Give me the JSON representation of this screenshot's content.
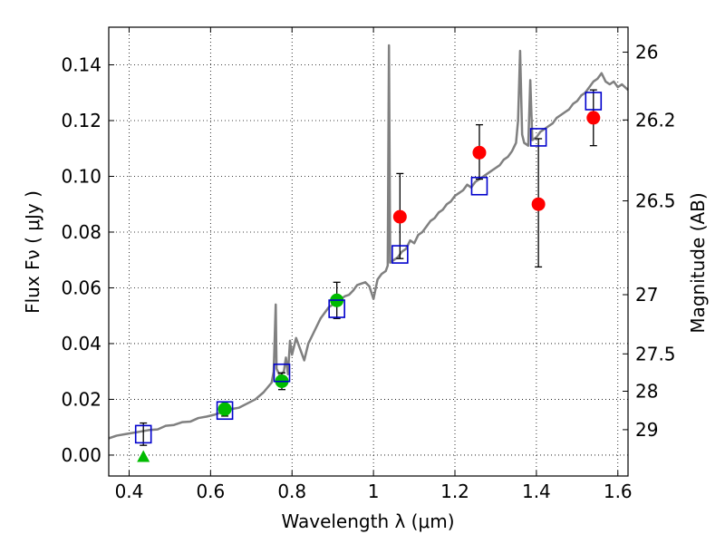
{
  "chart_data": {
    "type": "scatter",
    "xlabel": "Wavelength  λ (μm)",
    "ylabel": "Flux  Fν  ( μJy )",
    "y2label": "Magnitude (AB)",
    "xlim": [
      0.35,
      1.625
    ],
    "ylim": [
      -0.0075,
      0.1535
    ],
    "grid": true,
    "x_ticks": [
      {
        "value": 0.4,
        "label": "0.4"
      },
      {
        "value": 0.6,
        "label": "0.6"
      },
      {
        "value": 0.8,
        "label": "0.8"
      },
      {
        "value": 1.0,
        "label": "1"
      },
      {
        "value": 1.2,
        "label": "1.2"
      },
      {
        "value": 1.4,
        "label": "1.4"
      },
      {
        "value": 1.6,
        "label": "1.6"
      }
    ],
    "y_ticks": [
      {
        "value": 0.0,
        "label": "0.00"
      },
      {
        "value": 0.02,
        "label": "0.02"
      },
      {
        "value": 0.04,
        "label": "0.04"
      },
      {
        "value": 0.06,
        "label": "0.06"
      },
      {
        "value": 0.08,
        "label": "0.08"
      },
      {
        "value": 0.1,
        "label": "0.10"
      },
      {
        "value": 0.12,
        "label": "0.12"
      },
      {
        "value": 0.14,
        "label": "0.14"
      }
    ],
    "y2_ticks": [
      {
        "value": 26,
        "label": "26"
      },
      {
        "value": 26.2,
        "label": "26.2"
      },
      {
        "value": 26.5,
        "label": "26.5"
      },
      {
        "value": 27,
        "label": "27"
      },
      {
        "value": 27.5,
        "label": "27.5"
      },
      {
        "value": 28,
        "label": "28"
      },
      {
        "value": 29,
        "label": "29"
      }
    ],
    "colors": {
      "model": "#808080",
      "detection": "#ff0000",
      "secondary": "#00bb00",
      "model_flux": "#0000cc",
      "errorbar": "#000000"
    },
    "model_spectrum": {
      "name": "",
      "points": [
        [
          0.35,
          0.006
        ],
        [
          0.37,
          0.007
        ],
        [
          0.39,
          0.0075
        ],
        [
          0.41,
          0.008
        ],
        [
          0.43,
          0.0085
        ],
        [
          0.45,
          0.009
        ],
        [
          0.47,
          0.0092
        ],
        [
          0.49,
          0.0105
        ],
        [
          0.51,
          0.0108
        ],
        [
          0.53,
          0.0118
        ],
        [
          0.55,
          0.012
        ],
        [
          0.57,
          0.0133
        ],
        [
          0.59,
          0.0138
        ],
        [
          0.61,
          0.0145
        ],
        [
          0.63,
          0.0155
        ],
        [
          0.65,
          0.0165
        ],
        [
          0.67,
          0.017
        ],
        [
          0.69,
          0.0185
        ],
        [
          0.71,
          0.02
        ],
        [
          0.73,
          0.0225
        ],
        [
          0.75,
          0.026
        ],
        [
          0.755,
          0.03
        ],
        [
          0.76,
          0.054
        ],
        [
          0.762,
          0.031
        ],
        [
          0.77,
          0.0285
        ],
        [
          0.78,
          0.03
        ],
        [
          0.785,
          0.035
        ],
        [
          0.79,
          0.029
        ],
        [
          0.795,
          0.041
        ],
        [
          0.8,
          0.036
        ],
        [
          0.81,
          0.042
        ],
        [
          0.82,
          0.038
        ],
        [
          0.83,
          0.034
        ],
        [
          0.84,
          0.04
        ],
        [
          0.85,
          0.043
        ],
        [
          0.86,
          0.046
        ],
        [
          0.87,
          0.049
        ],
        [
          0.88,
          0.051
        ],
        [
          0.89,
          0.053
        ],
        [
          0.9,
          0.054
        ],
        [
          0.91,
          0.055
        ],
        [
          0.92,
          0.056
        ],
        [
          0.93,
          0.057
        ],
        [
          0.94,
          0.0575
        ],
        [
          0.95,
          0.059
        ],
        [
          0.96,
          0.061
        ],
        [
          0.97,
          0.0615
        ],
        [
          0.98,
          0.062
        ],
        [
          0.99,
          0.0605
        ],
        [
          1.0,
          0.056
        ],
        [
          1.01,
          0.063
        ],
        [
          1.02,
          0.065
        ],
        [
          1.03,
          0.066
        ],
        [
          1.035,
          0.068
        ],
        [
          1.038,
          0.147
        ],
        [
          1.041,
          0.069
        ],
        [
          1.05,
          0.07
        ],
        [
          1.06,
          0.071
        ],
        [
          1.07,
          0.073
        ],
        [
          1.08,
          0.074
        ],
        [
          1.09,
          0.077
        ],
        [
          1.1,
          0.076
        ],
        [
          1.11,
          0.079
        ],
        [
          1.12,
          0.08
        ],
        [
          1.13,
          0.082
        ],
        [
          1.14,
          0.084
        ],
        [
          1.15,
          0.085
        ],
        [
          1.16,
          0.087
        ],
        [
          1.17,
          0.088
        ],
        [
          1.18,
          0.09
        ],
        [
          1.19,
          0.091
        ],
        [
          1.2,
          0.093
        ],
        [
          1.21,
          0.094
        ],
        [
          1.22,
          0.095
        ],
        [
          1.23,
          0.097
        ],
        [
          1.24,
          0.096
        ],
        [
          1.25,
          0.098
        ],
        [
          1.26,
          0.099
        ],
        [
          1.27,
          0.1
        ],
        [
          1.28,
          0.101
        ],
        [
          1.29,
          0.102
        ],
        [
          1.3,
          0.103
        ],
        [
          1.31,
          0.104
        ],
        [
          1.32,
          0.106
        ],
        [
          1.33,
          0.107
        ],
        [
          1.34,
          0.109
        ],
        [
          1.35,
          0.112
        ],
        [
          1.355,
          0.12
        ],
        [
          1.36,
          0.145
        ],
        [
          1.365,
          0.115
        ],
        [
          1.37,
          0.112
        ],
        [
          1.38,
          0.111
        ],
        [
          1.385,
          0.1345
        ],
        [
          1.39,
          0.113
        ],
        [
          1.4,
          0.114
        ],
        [
          1.41,
          0.116
        ],
        [
          1.42,
          0.117
        ],
        [
          1.43,
          0.118
        ],
        [
          1.44,
          0.119
        ],
        [
          1.45,
          0.121
        ],
        [
          1.46,
          0.122
        ],
        [
          1.47,
          0.123
        ],
        [
          1.48,
          0.124
        ],
        [
          1.49,
          0.126
        ],
        [
          1.5,
          0.127
        ],
        [
          1.51,
          0.129
        ],
        [
          1.52,
          0.13
        ],
        [
          1.53,
          0.132
        ],
        [
          1.54,
          0.134
        ],
        [
          1.55,
          0.135
        ],
        [
          1.56,
          0.137
        ],
        [
          1.57,
          0.134
        ],
        [
          1.58,
          0.133
        ],
        [
          1.59,
          0.134
        ],
        [
          1.6,
          0.132
        ],
        [
          1.61,
          0.133
        ],
        [
          1.625,
          0.131
        ]
      ]
    },
    "series": [
      {
        "name": "",
        "marker": "circle",
        "color": "#ff0000",
        "points": [
          {
            "x": 1.065,
            "y": 0.0855,
            "yerr_low": 0.015,
            "yerr_high": 0.0155
          },
          {
            "x": 1.26,
            "y": 0.1085,
            "yerr_low": 0.0095,
            "yerr_high": 0.01
          },
          {
            "x": 1.405,
            "y": 0.09,
            "yerr_low": 0.0225,
            "yerr_high": 0.0235
          },
          {
            "x": 1.54,
            "y": 0.121,
            "yerr_low": 0.01,
            "yerr_high": 0.01
          }
        ]
      },
      {
        "name": "",
        "marker": "circle",
        "color": "#00bb00",
        "points": [
          {
            "x": 0.635,
            "y": 0.0165,
            "yerr_low": 0.0025,
            "yerr_high": 0.0025
          },
          {
            "x": 0.775,
            "y": 0.0265,
            "yerr_low": 0.003,
            "yerr_high": 0.003
          },
          {
            "x": 0.91,
            "y": 0.0555,
            "yerr_low": 0.0065,
            "yerr_high": 0.0065
          }
        ]
      },
      {
        "name": "",
        "marker": "triangle",
        "color": "#00bb00",
        "points": [
          {
            "x": 0.435,
            "y": -0.0005
          }
        ]
      },
      {
        "name": "",
        "marker": "square",
        "color": "#0000cc",
        "points": [
          {
            "x": 0.435,
            "y": 0.0075,
            "yerr_low": 0.004,
            "yerr_high": 0.004
          },
          {
            "x": 0.635,
            "y": 0.016
          },
          {
            "x": 0.775,
            "y": 0.0295
          },
          {
            "x": 0.91,
            "y": 0.0525
          },
          {
            "x": 1.065,
            "y": 0.072
          },
          {
            "x": 1.26,
            "y": 0.0965
          },
          {
            "x": 1.405,
            "y": 0.114
          },
          {
            "x": 1.54,
            "y": 0.127
          }
        ]
      }
    ]
  }
}
